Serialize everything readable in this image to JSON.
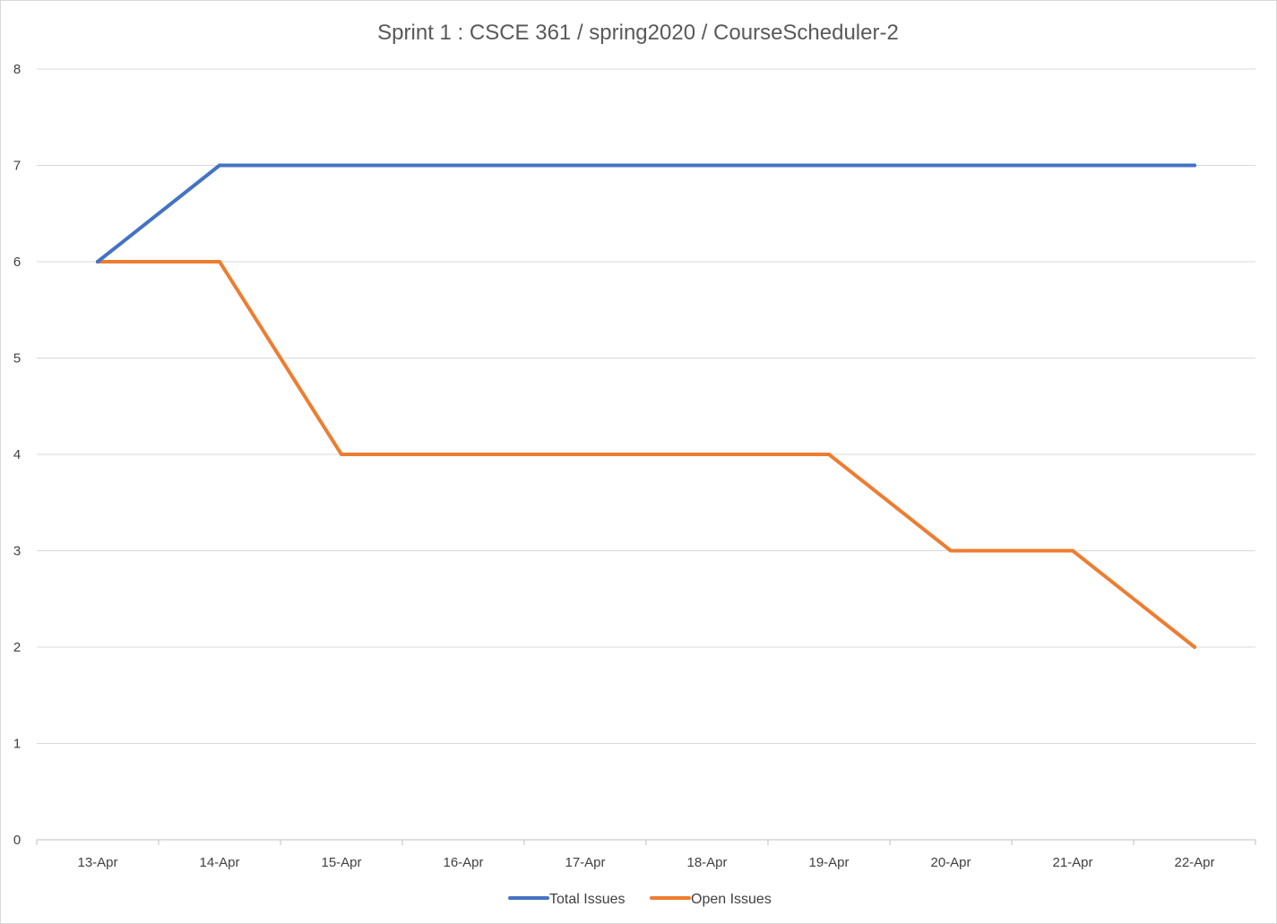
{
  "chart_data": {
    "type": "line",
    "title": "Sprint 1 : CSCE 361 / spring2020 / CourseScheduler-2",
    "xlabel": "",
    "ylabel": "",
    "categories": [
      "13-Apr",
      "14-Apr",
      "15-Apr",
      "16-Apr",
      "17-Apr",
      "18-Apr",
      "19-Apr",
      "20-Apr",
      "21-Apr",
      "22-Apr"
    ],
    "yticks": [
      "0",
      "1",
      "2",
      "3",
      "4",
      "5",
      "6",
      "7",
      "8"
    ],
    "ylim": [
      0,
      8
    ],
    "grid": true,
    "legend_position": "bottom",
    "series": [
      {
        "name": "Total Issues",
        "color": "#4472c4",
        "values": [
          6,
          7,
          7,
          7,
          7,
          7,
          7,
          7,
          7,
          7
        ]
      },
      {
        "name": "Open Issues",
        "color": "#ed7d31",
        "values": [
          6,
          6,
          4,
          4,
          4,
          4,
          4,
          3,
          3,
          2
        ]
      }
    ]
  }
}
